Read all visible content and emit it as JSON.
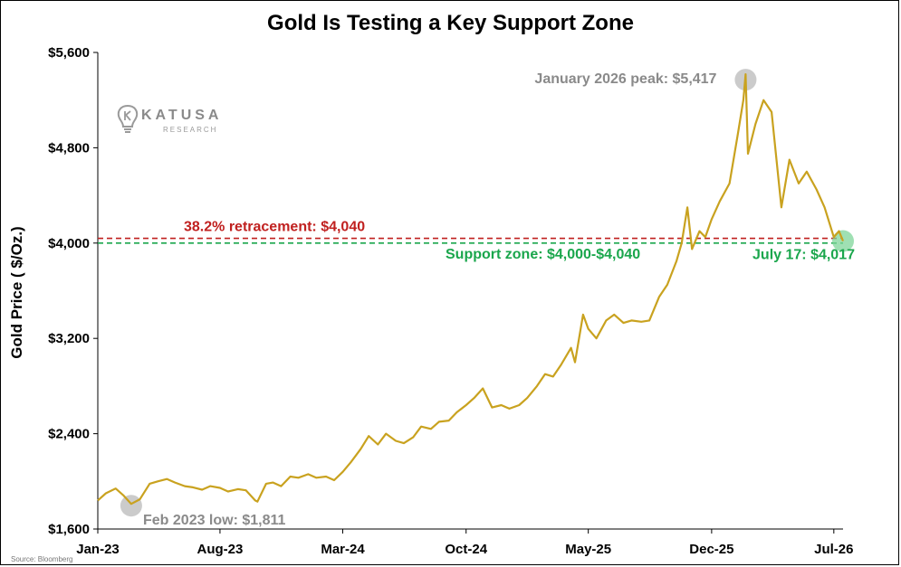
{
  "chart_data": {
    "type": "line",
    "title": "Gold Is Testing a Key Support Zone",
    "ylabel": "Gold Price ( $/Oz.)",
    "xlabel": "",
    "ylim": [
      1600,
      5600
    ],
    "xlim": [
      "2023-01-01",
      "2026-07-17"
    ],
    "y_ticks": [
      1600,
      2400,
      3200,
      4000,
      4800,
      5600
    ],
    "y_tick_labels": [
      "$1,600",
      "$2,400",
      "$3,200",
      "$4,000",
      "$4,800",
      "$5,600"
    ],
    "x_ticks": [
      "2023-01-01",
      "2023-08-01",
      "2024-03-01",
      "2024-10-01",
      "2025-05-01",
      "2025-12-01",
      "2026-07-01"
    ],
    "x_tick_labels": [
      "Jan-23",
      "Aug-23",
      "Mar-24",
      "Oct-24",
      "May-25",
      "Dec-25",
      "Jul-26"
    ],
    "grid": false,
    "line_color": "#C9A21F",
    "series": [
      {
        "x": [
          "2023-01-01",
          "2023-01-15",
          "2023-02-01",
          "2023-02-15",
          "2023-02-28",
          "2023-03-15",
          "2023-04-01",
          "2023-04-15",
          "2023-05-01",
          "2023-05-15",
          "2023-06-01",
          "2023-06-15",
          "2023-07-01",
          "2023-07-15",
          "2023-08-01",
          "2023-08-15",
          "2023-09-01",
          "2023-09-15",
          "2023-10-01",
          "2023-10-05",
          "2023-10-20",
          "2023-11-01",
          "2023-11-15",
          "2023-12-01",
          "2023-12-15",
          "2024-01-01",
          "2024-01-15",
          "2024-02-01",
          "2024-02-15",
          "2024-03-01",
          "2024-03-15",
          "2024-04-01",
          "2024-04-15",
          "2024-05-01",
          "2024-05-15",
          "2024-06-01",
          "2024-06-15",
          "2024-07-01",
          "2024-07-15",
          "2024-08-01",
          "2024-08-15",
          "2024-09-01",
          "2024-09-15",
          "2024-10-01",
          "2024-10-15",
          "2024-10-30",
          "2024-11-15",
          "2024-12-01",
          "2024-12-15",
          "2025-01-01",
          "2025-01-15",
          "2025-02-01",
          "2025-02-15",
          "2025-03-01",
          "2025-03-15",
          "2025-04-01",
          "2025-04-08",
          "2025-04-22",
          "2025-05-01",
          "2025-05-15",
          "2025-06-01",
          "2025-06-15",
          "2025-07-01",
          "2025-07-15",
          "2025-08-01",
          "2025-08-15",
          "2025-09-01",
          "2025-09-15",
          "2025-10-01",
          "2025-10-10",
          "2025-10-20",
          "2025-10-28",
          "2025-11-10",
          "2025-11-20",
          "2025-12-01",
          "2025-12-15",
          "2026-01-01",
          "2026-01-15",
          "2026-01-25",
          "2026-01-29",
          "2026-02-02",
          "2026-02-15",
          "2026-03-01",
          "2026-03-15",
          "2026-04-01",
          "2026-04-15",
          "2026-05-01",
          "2026-05-15",
          "2026-06-01",
          "2026-06-15",
          "2026-07-01",
          "2026-07-10",
          "2026-07-17"
        ],
        "y": [
          1840,
          1900,
          1940,
          1880,
          1811,
          1850,
          1980,
          2000,
          2020,
          1990,
          1960,
          1950,
          1930,
          1960,
          1945,
          1915,
          1935,
          1925,
          1840,
          1830,
          1980,
          1990,
          1960,
          2040,
          2030,
          2060,
          2030,
          2040,
          2010,
          2080,
          2160,
          2270,
          2380,
          2310,
          2400,
          2340,
          2320,
          2370,
          2460,
          2440,
          2500,
          2510,
          2580,
          2640,
          2700,
          2780,
          2620,
          2640,
          2610,
          2640,
          2700,
          2800,
          2900,
          2880,
          2980,
          3120,
          3000,
          3400,
          3280,
          3200,
          3350,
          3400,
          3330,
          3350,
          3340,
          3350,
          3550,
          3650,
          3850,
          4000,
          4300,
          3950,
          4100,
          4050,
          4200,
          4350,
          4500,
          4900,
          5200,
          5417,
          4750,
          5000,
          5200,
          5100,
          4300,
          4700,
          4500,
          4600,
          4450,
          4300,
          4050,
          4100,
          4017
        ]
      }
    ],
    "annotations": {
      "peak": {
        "text": "January 2026 peak: $5,417",
        "x": "2026-01-29",
        "y": 5417,
        "color": "#8a8a8a"
      },
      "low": {
        "text": "Feb 2023 low: $1,811",
        "x": "2023-02-28",
        "y": 1811,
        "color": "#8a8a8a"
      },
      "current": {
        "text": "July 17: $4,017",
        "x": "2026-07-17",
        "y": 4017,
        "color": "#1aa64c"
      },
      "retracement": {
        "text": "38.2% retracement: $4,040",
        "y": 4040,
        "color": "#c0201f"
      },
      "support": {
        "text": "Support zone: $4,000-$4,040",
        "y": 4000,
        "color": "#1aa64c"
      }
    }
  },
  "logo": {
    "name": "KATUSA",
    "sub": "RESEARCH"
  },
  "source": "Source: Bloomberg"
}
